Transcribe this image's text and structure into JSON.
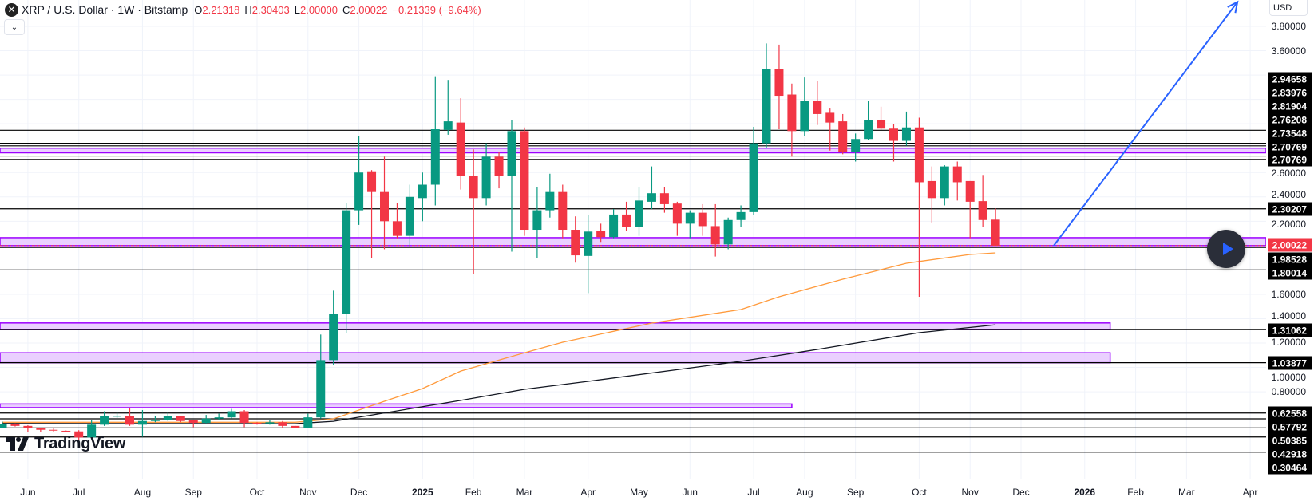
{
  "header": {
    "symbol_title": "XRP / U.S. Dollar · 1W · Bitstamp",
    "open_label": "O",
    "open": "2.21318",
    "high_label": "H",
    "high": "2.30403",
    "low_label": "L",
    "low": "2.00000",
    "close_label": "C",
    "close": "2.00022",
    "change": "−0.21339 (−9.64%)",
    "logo_icon": "xrp-x-icon",
    "collapse_icon": "chevron-down-icon"
  },
  "price_axis": {
    "currency": "USD",
    "tick_labels": [
      "3.80000",
      "3.60000",
      "2.60000",
      "2.40000",
      "2.20000",
      "1.60000",
      "1.40000",
      "1.20000",
      "1.00000",
      "0.80000"
    ],
    "level_labels": [
      "2.94658",
      "2.83976",
      "2.81904",
      "2.76208",
      "2.73548",
      "2.70769",
      "2.70769",
      "2.30207",
      "2.00022",
      "1.98528",
      "1.80014",
      "1.31062",
      "1.03877",
      "0.62558",
      "0.57792",
      "0.50385",
      "0.42918",
      "0.30464"
    ],
    "current_price": "2.00022"
  },
  "brand": {
    "name": "TradingView"
  },
  "colors": {
    "up": "#089981",
    "down": "#f23645",
    "ma_fast": "#ff9a3c",
    "ma_slow": "#131722",
    "zone_fill": "#e6c8ff",
    "zone_stroke": "#9c00ff",
    "trendline": "#2962ff",
    "level_line": "#000000",
    "current_price": "#f23645"
  },
  "chart_data": {
    "type": "candlestick",
    "title": "XRP / U.S. Dollar · 1W · Bitstamp",
    "ylim": [
      0.09,
      4.02
    ],
    "y_scale": "linear",
    "grid": true,
    "x_ticks": [
      {
        "label": "Jun",
        "date": "2024-06-03"
      },
      {
        "label": "Jul",
        "date": "2024-07-01"
      },
      {
        "label": "Aug",
        "date": "2024-08-05"
      },
      {
        "label": "Sep",
        "date": "2024-09-02"
      },
      {
        "label": "Oct",
        "date": "2024-10-07"
      },
      {
        "label": "Nov",
        "date": "2024-11-04"
      },
      {
        "label": "Dec",
        "date": "2024-12-02"
      },
      {
        "label": "2025",
        "date": "2025-01-06",
        "bold": true
      },
      {
        "label": "Feb",
        "date": "2025-02-03"
      },
      {
        "label": "Mar",
        "date": "2025-03-03"
      },
      {
        "label": "Apr",
        "date": "2025-04-07"
      },
      {
        "label": "May",
        "date": "2025-05-05"
      },
      {
        "label": "Jun",
        "date": "2025-06-02"
      },
      {
        "label": "Jul",
        "date": "2025-07-07"
      },
      {
        "label": "Aug",
        "date": "2025-08-04"
      },
      {
        "label": "Sep",
        "date": "2025-09-01"
      },
      {
        "label": "Oct",
        "date": "2025-10-06"
      },
      {
        "label": "Nov",
        "date": "2025-11-03"
      },
      {
        "label": "Dec",
        "date": "2025-12-01"
      },
      {
        "label": "2026",
        "date": "2026-01-05",
        "bold": true
      },
      {
        "label": "Feb",
        "date": "2026-02-02"
      },
      {
        "label": "Mar",
        "date": "2026-03-02"
      },
      {
        "label": "Apr",
        "date": "2026-04-06"
      }
    ],
    "y_ticks": [
      0.8,
      1.0,
      1.2,
      1.4,
      1.6,
      1.8,
      2.0,
      2.2,
      2.4,
      2.6,
      2.8,
      3.0,
      3.2,
      3.4,
      3.6,
      3.8
    ],
    "ohlc_columns": [
      "date",
      "open",
      "high",
      "low",
      "close"
    ],
    "candles": [
      [
        "2024-05-20",
        0.506,
        0.555,
        0.5,
        0.534
      ],
      [
        "2024-05-27",
        0.534,
        0.54,
        0.515,
        0.52
      ],
      [
        "2024-06-03",
        0.52,
        0.525,
        0.47,
        0.5
      ],
      [
        "2024-06-10",
        0.5,
        0.505,
        0.47,
        0.488
      ],
      [
        "2024-06-17",
        0.488,
        0.5,
        0.47,
        0.482
      ],
      [
        "2024-06-24",
        0.48,
        0.482,
        0.47,
        0.475
      ],
      [
        "2024-07-01",
        0.475,
        0.485,
        0.4,
        0.425
      ],
      [
        "2024-07-08",
        0.425,
        0.57,
        0.41,
        0.53
      ],
      [
        "2024-07-15",
        0.53,
        0.64,
        0.52,
        0.6
      ],
      [
        "2024-07-22",
        0.6,
        0.635,
        0.585,
        0.602
      ],
      [
        "2024-07-29",
        0.6,
        0.663,
        0.52,
        0.53
      ],
      [
        "2024-08-05",
        0.53,
        0.65,
        0.43,
        0.56
      ],
      [
        "2024-08-12",
        0.56,
        0.6,
        0.55,
        0.57
      ],
      [
        "2024-08-19",
        0.57,
        0.63,
        0.56,
        0.6
      ],
      [
        "2024-08-26",
        0.6,
        0.6,
        0.55,
        0.56
      ],
      [
        "2024-09-02",
        0.565,
        0.57,
        0.51,
        0.545
      ],
      [
        "2024-09-09",
        0.545,
        0.61,
        0.54,
        0.58
      ],
      [
        "2024-09-16",
        0.58,
        0.62,
        0.57,
        0.59
      ],
      [
        "2024-09-23",
        0.59,
        0.66,
        0.58,
        0.64
      ],
      [
        "2024-09-30",
        0.64,
        0.65,
        0.51,
        0.545
      ],
      [
        "2024-10-07",
        0.545,
        0.55,
        0.53,
        0.54
      ],
      [
        "2024-10-14",
        0.54,
        0.57,
        0.53,
        0.55
      ],
      [
        "2024-10-21",
        0.55,
        0.56,
        0.5,
        0.52
      ],
      [
        "2024-10-28",
        0.52,
        0.52,
        0.5,
        0.505
      ],
      [
        "2024-11-04",
        0.505,
        0.62,
        0.5,
        0.59
      ],
      [
        "2024-11-11",
        0.59,
        1.27,
        0.58,
        1.06
      ],
      [
        "2024-11-18",
        1.06,
        1.63,
        1.02,
        1.44
      ],
      [
        "2024-11-25",
        1.44,
        2.35,
        1.28,
        2.29
      ],
      [
        "2024-12-02",
        2.29,
        2.9,
        2.17,
        2.6
      ],
      [
        "2024-12-09",
        2.61,
        2.62,
        1.9,
        2.44
      ],
      [
        "2024-12-16",
        2.44,
        2.73,
        1.97,
        2.2
      ],
      [
        "2024-12-23",
        2.2,
        2.35,
        2.06,
        2.08
      ],
      [
        "2024-12-30",
        2.08,
        2.5,
        1.99,
        2.4
      ],
      [
        "2025-01-06",
        2.39,
        2.6,
        2.2,
        2.5
      ],
      [
        "2025-01-13",
        2.5,
        3.39,
        2.33,
        2.955
      ],
      [
        "2025-01-20",
        2.95,
        3.36,
        2.91,
        3.02
      ],
      [
        "2025-01-27",
        3.01,
        3.21,
        2.46,
        2.57
      ],
      [
        "2025-02-03",
        2.575,
        2.79,
        1.77,
        2.39
      ],
      [
        "2025-02-10",
        2.39,
        2.84,
        2.33,
        2.73
      ],
      [
        "2025-02-17",
        2.73,
        2.77,
        2.47,
        2.57
      ],
      [
        "2025-02-24",
        2.57,
        3.03,
        1.95,
        2.94
      ],
      [
        "2025-03-03",
        2.94,
        2.97,
        2.08,
        2.13
      ],
      [
        "2025-03-10",
        2.13,
        2.48,
        1.9,
        2.29
      ],
      [
        "2025-03-17",
        2.29,
        2.59,
        2.23,
        2.44
      ],
      [
        "2025-03-24",
        2.44,
        2.5,
        2.06,
        2.13
      ],
      [
        "2025-03-31",
        2.13,
        2.24,
        1.86,
        1.92
      ],
      [
        "2025-04-07",
        1.915,
        2.25,
        1.61,
        2.115
      ],
      [
        "2025-04-14",
        2.117,
        2.18,
        2.03,
        2.07
      ],
      [
        "2025-04-21",
        2.07,
        2.3,
        2.06,
        2.255
      ],
      [
        "2025-04-28",
        2.255,
        2.36,
        2.12,
        2.15
      ],
      [
        "2025-05-05",
        2.15,
        2.48,
        2.08,
        2.37
      ],
      [
        "2025-05-12",
        2.36,
        2.65,
        2.3,
        2.43
      ],
      [
        "2025-05-19",
        2.43,
        2.48,
        2.27,
        2.34
      ],
      [
        "2025-05-26",
        2.345,
        2.36,
        2.08,
        2.18
      ],
      [
        "2025-06-02",
        2.18,
        2.29,
        2.06,
        2.27
      ],
      [
        "2025-06-09",
        2.27,
        2.34,
        2.08,
        2.16
      ],
      [
        "2025-06-16",
        2.16,
        2.34,
        1.91,
        2.01
      ],
      [
        "2025-06-23",
        2.01,
        2.23,
        1.97,
        2.21
      ],
      [
        "2025-06-30",
        2.21,
        2.33,
        2.15,
        2.275
      ],
      [
        "2025-07-07",
        2.275,
        2.975,
        2.25,
        2.84
      ],
      [
        "2025-07-14",
        2.84,
        3.66,
        2.8,
        3.45
      ],
      [
        "2025-07-21",
        3.45,
        3.65,
        2.955,
        3.23
      ],
      [
        "2025-07-28",
        3.24,
        3.33,
        2.73,
        2.94
      ],
      [
        "2025-08-04",
        2.94,
        3.38,
        2.9,
        3.185
      ],
      [
        "2025-08-11",
        3.185,
        3.35,
        2.99,
        3.08
      ],
      [
        "2025-08-18",
        3.09,
        3.125,
        2.78,
        3.01
      ],
      [
        "2025-08-25",
        3.02,
        3.08,
        2.75,
        2.765
      ],
      [
        "2025-09-01",
        2.765,
        2.92,
        2.69,
        2.875
      ],
      [
        "2025-09-08",
        2.875,
        3.185,
        2.865,
        3.03
      ],
      [
        "2025-09-15",
        3.03,
        3.14,
        2.95,
        2.96
      ],
      [
        "2025-09-22",
        2.96,
        3.0,
        2.69,
        2.86
      ],
      [
        "2025-09-29",
        2.86,
        3.1,
        2.82,
        2.97
      ],
      [
        "2025-10-06",
        2.97,
        3.05,
        1.58,
        2.52
      ],
      [
        "2025-10-13",
        2.53,
        2.65,
        2.19,
        2.39
      ],
      [
        "2025-10-20",
        2.39,
        2.66,
        2.33,
        2.65
      ],
      [
        "2025-10-27",
        2.65,
        2.69,
        2.37,
        2.52
      ],
      [
        "2025-11-03",
        2.53,
        2.53,
        2.06,
        2.36
      ],
      [
        "2025-11-10",
        2.365,
        2.58,
        2.15,
        2.21
      ],
      [
        "2025-11-17",
        2.21318,
        2.30403,
        2.0,
        2.00022
      ]
    ],
    "moving_averages": [
      {
        "color": "#ff9a3c",
        "points": [
          [
            "2024-05-20",
            0.55
          ],
          [
            "2024-10-28",
            0.55
          ],
          [
            "2024-11-18",
            0.578
          ],
          [
            "2024-12-16",
            0.722
          ],
          [
            "2025-01-06",
            0.827
          ],
          [
            "2025-01-27",
            0.97
          ],
          [
            "2025-03-03",
            1.12
          ],
          [
            "2025-03-24",
            1.207
          ],
          [
            "2025-05-12",
            1.364
          ],
          [
            "2025-06-30",
            1.475
          ],
          [
            "2025-07-21",
            1.58
          ],
          [
            "2025-08-25",
            1.724
          ],
          [
            "2025-09-29",
            1.855
          ],
          [
            "2025-11-03",
            1.927
          ],
          [
            "2025-11-17",
            1.94
          ]
        ]
      },
      {
        "color": "#131722",
        "points": [
          [
            "2024-05-20",
            0.54
          ],
          [
            "2024-10-28",
            0.539
          ],
          [
            "2024-11-18",
            0.558
          ],
          [
            "2025-01-27",
            0.729
          ],
          [
            "2025-03-03",
            0.82
          ],
          [
            "2025-04-07",
            0.886
          ],
          [
            "2025-06-30",
            1.05
          ],
          [
            "2025-08-11",
            1.148
          ],
          [
            "2025-10-06",
            1.285
          ],
          [
            "2025-11-17",
            1.35
          ]
        ]
      }
    ],
    "horizontal_levels": [
      2.94658,
      2.83976,
      2.81904,
      2.73548,
      2.70769,
      2.30207,
      1.98528,
      1.80014,
      1.31062,
      1.03877,
      0.62558,
      0.57792,
      0.50385,
      0.42918,
      0.30464
    ],
    "zones": [
      {
        "top": 2.8,
        "bottom": 2.762,
        "end": null
      },
      {
        "top": 2.065,
        "bottom": 2.0,
        "end": null
      },
      {
        "top": 1.365,
        "bottom": 1.31062,
        "end": "2026-01-19"
      },
      {
        "top": 1.12,
        "bottom": 1.03877,
        "end": "2026-01-19"
      },
      {
        "top": 0.7,
        "bottom": 0.67,
        "end": "2025-07-28"
      }
    ],
    "trendline": {
      "from": [
        "2025-12-19",
        2.0
      ],
      "to": [
        "2026-03-30",
        4.0
      ],
      "arrow": true
    },
    "last_price": 2.00022
  }
}
